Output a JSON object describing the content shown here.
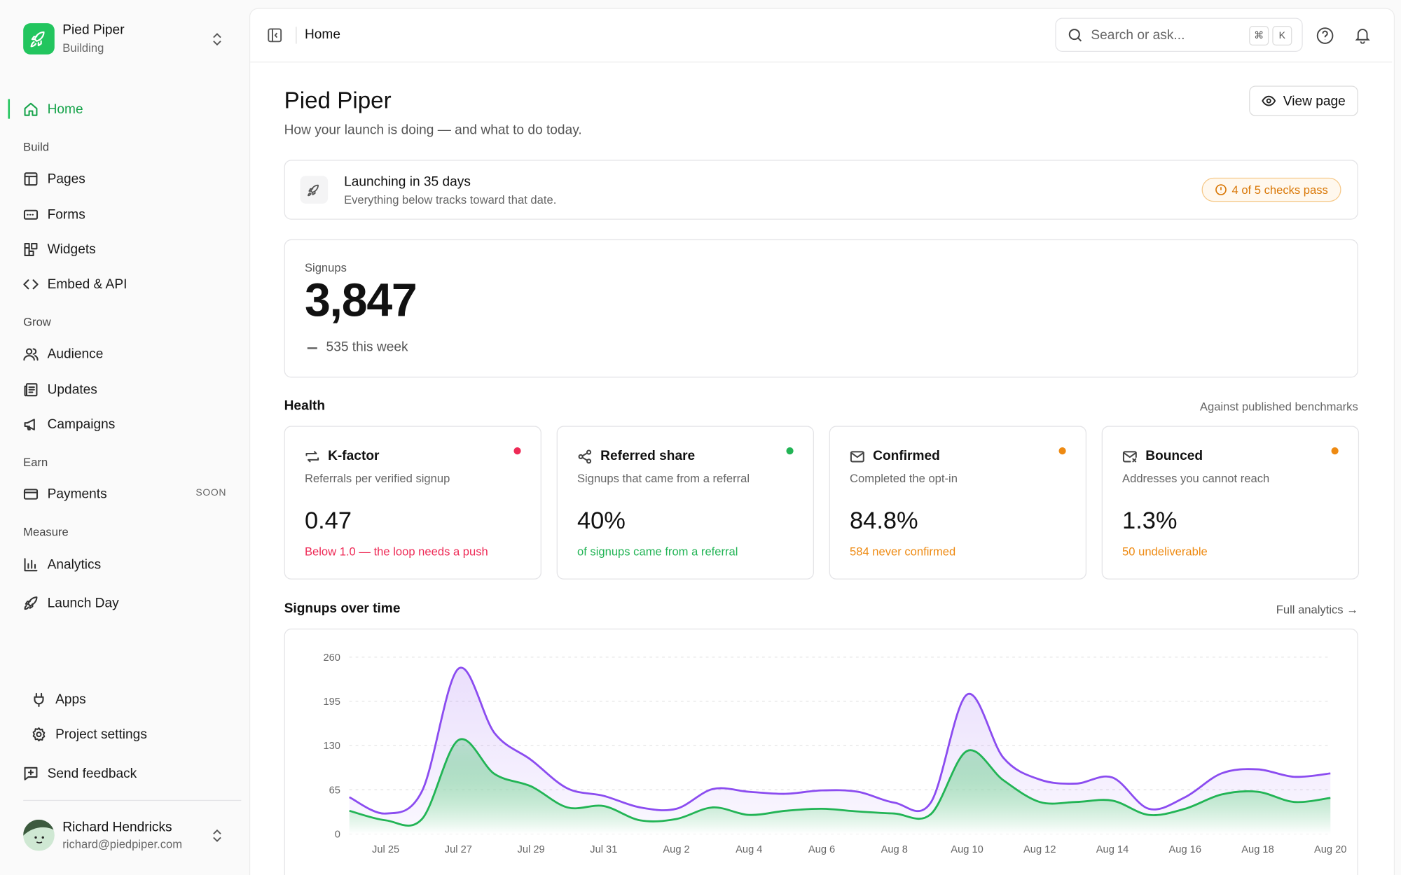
{
  "sidebar": {
    "workspace": {
      "name": "Pied Piper",
      "status": "Building"
    },
    "home": "Home",
    "sections": [
      {
        "title": "Build",
        "items": [
          {
            "label": "Pages"
          },
          {
            "label": "Forms"
          },
          {
            "label": "Widgets"
          },
          {
            "label": "Embed & API"
          }
        ]
      },
      {
        "title": "Grow",
        "items": [
          {
            "label": "Audience"
          },
          {
            "label": "Updates"
          },
          {
            "label": "Campaigns"
          }
        ]
      },
      {
        "title": "Earn",
        "items": [
          {
            "label": "Payments",
            "badge": "SOON"
          }
        ]
      },
      {
        "title": "Measure",
        "items": [
          {
            "label": "Analytics"
          },
          {
            "label": "Launch Day"
          }
        ]
      }
    ],
    "footer": [
      "Apps",
      "Project settings",
      "Send feedback"
    ],
    "user": {
      "name": "Richard Hendricks",
      "email": "richard@piedpiper.com"
    }
  },
  "header": {
    "breadcrumb": "Home",
    "search": "Search or ask...",
    "keys": [
      "⌘",
      "K"
    ]
  },
  "page": {
    "title": "Pied Piper",
    "subtitle": "How your launch is doing — and what to do today.",
    "button": "View page"
  },
  "launch": {
    "title": "Launching in 35 days",
    "subtitle": "Everything below tracks toward that date.",
    "badge": "4 of 5 checks pass"
  },
  "signups": {
    "label": "Signups",
    "value": "3,847",
    "delta": "535 this week"
  },
  "health": {
    "title": "Health",
    "note": "Against published benchmarks",
    "cards": [
      {
        "title": "K-factor",
        "subtitle": "Referrals per verified signup",
        "value": "0.47",
        "detail": "Below 1.0 — the loop needs a push",
        "color": "#ee2a56"
      },
      {
        "title": "Referred share",
        "subtitle": "Signups that came from a referral",
        "value": "40%",
        "detail": "of signups came from a referral",
        "color": "#22b455"
      },
      {
        "title": "Confirmed",
        "subtitle": "Completed the opt-in",
        "value": "84.8%",
        "detail": "584 never confirmed",
        "color": "#ee8a12"
      },
      {
        "title": "Bounced",
        "subtitle": "Addresses you cannot reach",
        "value": "1.3%",
        "detail": "50 undeliverable",
        "color": "#ee8a12"
      }
    ]
  },
  "chart_section": {
    "title": "Signups over time",
    "link": "Full analytics →"
  },
  "chart_data": {
    "type": "line",
    "categories": [
      null,
      "Jul 25",
      null,
      "Jul 27",
      null,
      "Jul 29",
      null,
      "Jul 31",
      null,
      "Aug 2",
      null,
      "Aug 4",
      null,
      "Aug 6",
      null,
      "Aug 8",
      null,
      "Aug 10",
      null,
      "Aug 12",
      null,
      "Aug 14",
      null,
      "Aug 16",
      null,
      "Aug 18",
      null,
      "Aug 20"
    ],
    "series": [
      {
        "color": "#8b4cf0",
        "values": [
          54,
          30,
          63,
          243,
          148,
          109,
          67,
          56,
          39,
          37,
          66,
          62,
          59,
          64,
          62,
          46,
          46,
          205,
          112,
          80,
          74,
          83,
          37,
          54,
          89,
          95,
          84,
          89
        ]
      },
      {
        "color": "#22b455",
        "values": [
          34,
          20,
          22,
          138,
          88,
          70,
          39,
          41,
          20,
          22,
          39,
          28,
          34,
          37,
          33,
          30,
          29,
          122,
          79,
          47,
          47,
          49,
          28,
          37,
          58,
          62,
          47,
          53
        ]
      }
    ],
    "ylim": [
      0,
      260
    ],
    "yticks": [
      0,
      65,
      130,
      195,
      260
    ],
    "grid": true
  }
}
